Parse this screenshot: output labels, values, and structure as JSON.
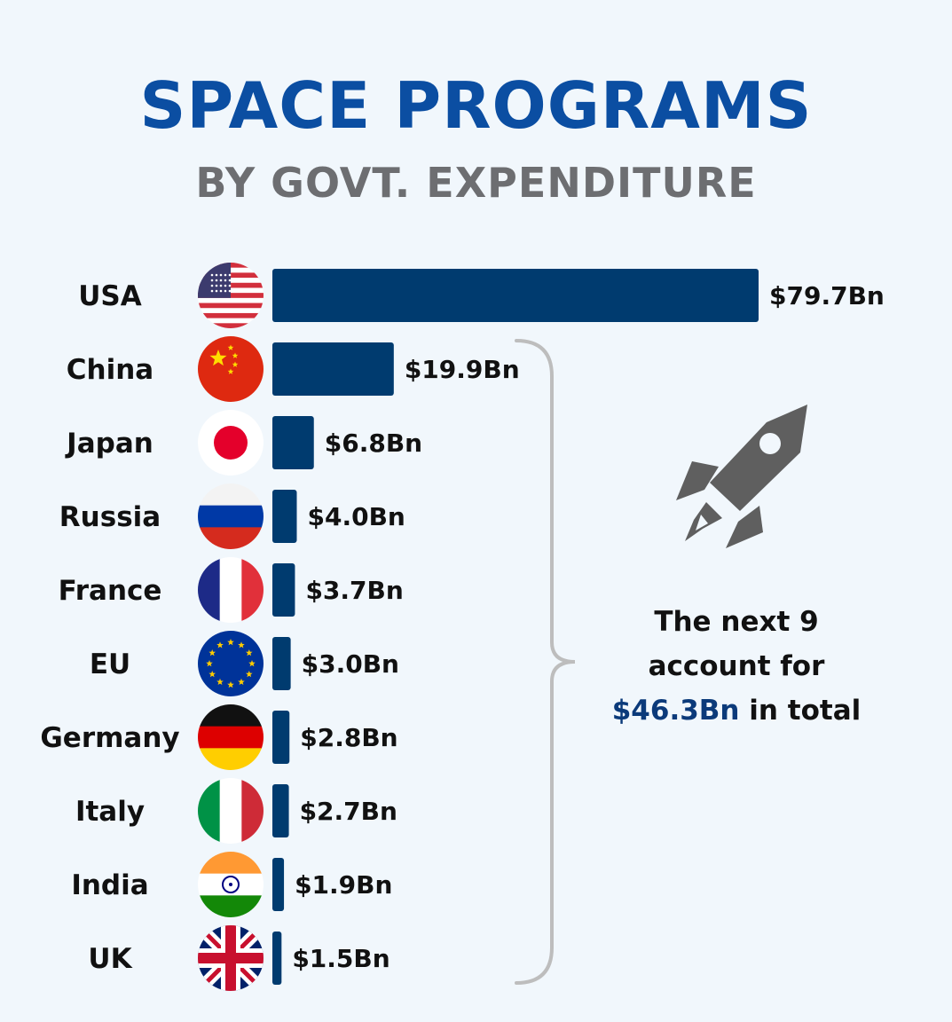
{
  "title": "SPACE PROGRAMS",
  "subtitle": "BY GOVT. EXPENDITURE",
  "note": {
    "line1": "The next 9",
    "line2": "account for",
    "highlight": "$46.3Bn",
    "suffix": " in total"
  },
  "colors": {
    "bar": "#003b6f",
    "title": "#0b4ea2",
    "subtitle": "#6d6e71",
    "brace": "#bdbdbd",
    "rocket": "#5f5f5f"
  },
  "chart_data": {
    "type": "bar",
    "orientation": "horizontal",
    "title": "SPACE PROGRAMS",
    "subtitle": "BY GOVT. EXPENDITURE",
    "categories": [
      "USA",
      "China",
      "Japan",
      "Russia",
      "France",
      "EU",
      "Germany",
      "Italy",
      "India",
      "UK"
    ],
    "values": [
      79.7,
      19.9,
      6.8,
      4.0,
      3.7,
      3.0,
      2.8,
      2.7,
      1.9,
      1.5
    ],
    "value_labels": [
      "$79.7Bn",
      "$19.9Bn",
      "$6.8Bn",
      "$4.0Bn",
      "$3.7Bn",
      "$3.0Bn",
      "$2.8Bn",
      "$2.7Bn",
      "$1.9Bn",
      "$1.5Bn"
    ],
    "flags": [
      "usa-flag-icon",
      "china-flag-icon",
      "japan-flag-icon",
      "russia-flag-icon",
      "france-flag-icon",
      "eu-flag-icon",
      "germany-flag-icon",
      "italy-flag-icon",
      "india-flag-icon",
      "uk-flag-icon"
    ],
    "xlabel": "",
    "ylabel": "",
    "xlim": [
      0,
      79.7
    ],
    "grid": false,
    "legend": "none"
  }
}
